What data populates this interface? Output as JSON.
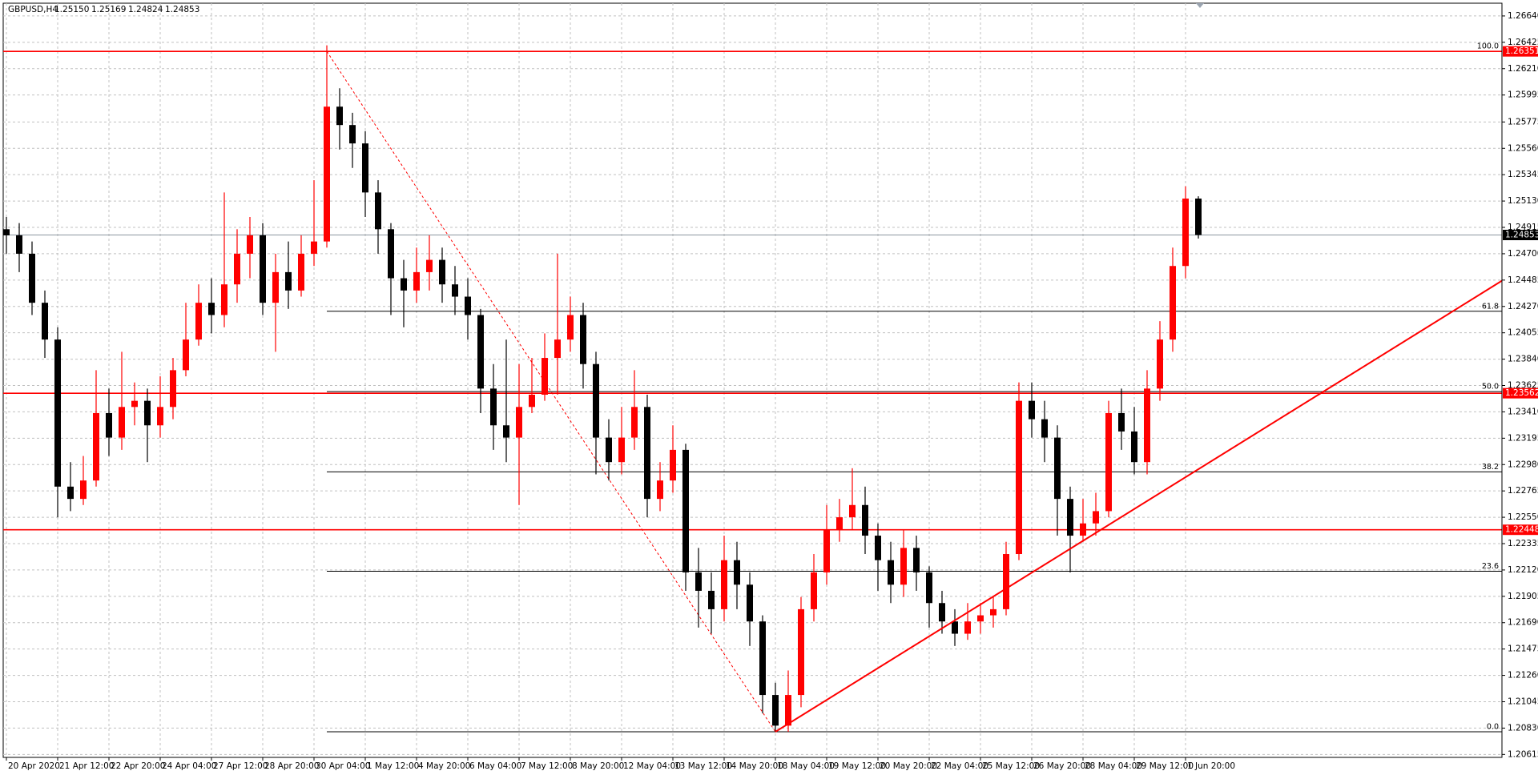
{
  "chart_data": {
    "type": "candlestick",
    "title": "GBPUSD,H4",
    "quote": [
      "1.25150",
      "1.25169",
      "1.24824",
      "1.24853"
    ],
    "categories": [
      "20 Apr 2020",
      null,
      null,
      null,
      "21 Apr 12:00",
      null,
      null,
      null,
      "22 Apr 20:00",
      null,
      null,
      null,
      "24 Apr 04:00",
      null,
      null,
      null,
      "27 Apr 12:00",
      null,
      null,
      null,
      "28 Apr 20:00",
      null,
      null,
      null,
      "30 Apr 04:00",
      null,
      null,
      null,
      "1 May 12:00",
      null,
      null,
      null,
      "4 May 20:00",
      null,
      null,
      null,
      "6 May 04:00",
      null,
      null,
      null,
      "7 May 12:00",
      null,
      null,
      null,
      "8 May 20:00",
      null,
      null,
      null,
      "12 May 04:00",
      null,
      null,
      null,
      "13 May 12:00",
      null,
      null,
      null,
      "14 May 20:00",
      null,
      null,
      null,
      "18 May 04:00",
      null,
      null,
      null,
      "19 May 12:00",
      null,
      null,
      null,
      "20 May 20:00",
      null,
      null,
      null,
      "22 May 04:00",
      null,
      null,
      null,
      "25 May 12:00",
      null,
      null,
      null,
      "26 May 20:00",
      null,
      null,
      null,
      "28 May 04:00",
      null,
      null,
      null,
      "29 May 12:00",
      null,
      null,
      null,
      "1 Jun 20:00",
      null
    ],
    "open": [
      1.249,
      1.2485,
      1.247,
      1.243,
      1.24,
      1.228,
      1.227,
      1.2285,
      1.234,
      1.232,
      1.2345,
      1.235,
      1.233,
      1.2345,
      1.2375,
      1.24,
      1.243,
      1.242,
      1.2445,
      1.247,
      1.2485,
      1.243,
      1.2455,
      1.244,
      1.247,
      1.248,
      1.259,
      1.2575,
      1.256,
      1.252,
      1.249,
      1.245,
      1.244,
      1.2455,
      1.2465,
      1.2445,
      1.2435,
      1.242,
      1.236,
      1.233,
      1.232,
      1.2345,
      1.2355,
      1.2385,
      1.24,
      1.242,
      1.238,
      1.232,
      1.23,
      1.232,
      1.2345,
      1.227,
      1.2285,
      1.231,
      1.221,
      1.2195,
      1.218,
      1.222,
      1.22,
      1.217,
      1.211,
      1.2085,
      1.211,
      1.218,
      1.221,
      1.2245,
      1.2255,
      1.2265,
      1.224,
      1.222,
      1.22,
      1.223,
      1.221,
      1.2185,
      1.217,
      1.216,
      1.217,
      1.2175,
      1.218,
      1.2225,
      1.235,
      1.2335,
      1.232,
      1.227,
      1.224,
      1.225,
      1.226,
      1.234,
      1.2325,
      1.23,
      1.236,
      1.24,
      1.246,
      1.2515
    ],
    "high": [
      1.25,
      1.2495,
      1.248,
      1.244,
      1.241,
      1.23,
      1.2305,
      1.2375,
      1.236,
      1.239,
      1.2365,
      1.236,
      1.237,
      1.2385,
      1.243,
      1.2445,
      1.245,
      1.252,
      1.249,
      1.25,
      1.2495,
      1.247,
      1.248,
      1.2485,
      1.253,
      1.264,
      1.2605,
      1.2585,
      1.257,
      1.253,
      1.2495,
      1.2465,
      1.2475,
      1.2485,
      1.2475,
      1.246,
      1.245,
      1.2425,
      1.238,
      1.24,
      1.238,
      1.2385,
      1.2405,
      1.247,
      1.2435,
      1.243,
      1.239,
      1.2335,
      1.2345,
      1.2375,
      1.2355,
      1.23,
      1.233,
      1.2315,
      1.223,
      1.221,
      1.224,
      1.2235,
      1.221,
      1.2175,
      1.212,
      1.213,
      1.219,
      1.2225,
      1.2265,
      1.227,
      1.2295,
      1.228,
      1.225,
      1.2235,
      1.2245,
      1.224,
      1.2215,
      1.2195,
      1.218,
      1.2185,
      1.2185,
      1.219,
      1.2235,
      1.2365,
      1.2365,
      1.235,
      1.233,
      1.228,
      1.227,
      1.2275,
      1.235,
      1.236,
      1.2345,
      1.2375,
      1.2415,
      1.2475,
      1.2525,
      1.25169
    ],
    "low": [
      1.247,
      1.2455,
      1.242,
      1.2385,
      1.2255,
      1.226,
      1.2265,
      1.228,
      1.2305,
      1.231,
      1.233,
      1.23,
      1.232,
      1.2335,
      1.237,
      1.2395,
      1.2405,
      1.241,
      1.243,
      1.245,
      1.242,
      1.239,
      1.2425,
      1.2435,
      1.246,
      1.2475,
      1.2555,
      1.254,
      1.25,
      1.247,
      1.242,
      1.241,
      1.243,
      1.244,
      1.243,
      1.242,
      1.24,
      1.234,
      1.231,
      1.23,
      1.2265,
      1.234,
      1.235,
      1.2355,
      1.239,
      1.236,
      1.229,
      1.2285,
      1.229,
      1.231,
      1.2255,
      1.226,
      1.2275,
      1.2195,
      1.2165,
      1.216,
      1.217,
      1.218,
      1.215,
      1.2095,
      1.208,
      1.208,
      1.21,
      1.217,
      1.22,
      1.2235,
      1.2245,
      1.2225,
      1.2195,
      1.2185,
      1.219,
      1.2195,
      1.2165,
      1.216,
      1.215,
      1.2155,
      1.216,
      1.2165,
      1.2175,
      1.222,
      1.232,
      1.23,
      1.224,
      1.221,
      1.2235,
      1.224,
      1.2255,
      1.231,
      1.229,
      1.229,
      1.235,
      1.239,
      1.245,
      1.24824
    ],
    "close": [
      1.2485,
      1.247,
      1.243,
      1.24,
      1.228,
      1.227,
      1.2285,
      1.234,
      1.232,
      1.2345,
      1.235,
      1.233,
      1.2345,
      1.2375,
      1.24,
      1.243,
      1.242,
      1.2445,
      1.247,
      1.2485,
      1.243,
      1.2455,
      1.244,
      1.247,
      1.248,
      1.259,
      1.2575,
      1.256,
      1.252,
      1.249,
      1.245,
      1.244,
      1.2455,
      1.2465,
      1.2445,
      1.2435,
      1.242,
      1.236,
      1.233,
      1.232,
      1.2345,
      1.2355,
      1.2385,
      1.24,
      1.242,
      1.238,
      1.232,
      1.23,
      1.232,
      1.2345,
      1.227,
      1.2285,
      1.231,
      1.221,
      1.2195,
      1.218,
      1.222,
      1.22,
      1.217,
      1.211,
      1.2085,
      1.211,
      1.218,
      1.221,
      1.2245,
      1.2255,
      1.2265,
      1.224,
      1.222,
      1.22,
      1.223,
      1.221,
      1.2185,
      1.217,
      1.216,
      1.217,
      1.2175,
      1.218,
      1.2225,
      1.235,
      1.2335,
      1.232,
      1.227,
      1.224,
      1.225,
      1.226,
      1.234,
      1.2325,
      1.23,
      1.236,
      1.24,
      1.246,
      1.2515,
      1.24853
    ],
    "up_color": "#ff0000",
    "down_color": "#000000",
    "ylim": [
      1.20591,
      1.26744
    ],
    "yticks": [
      {
        "value": 1.2664,
        "label": "1.26640"
      },
      1.26425,
      {
        "value": 1.2621,
        "label": "1.26210"
      },
      1.25995,
      1.25775,
      {
        "value": 1.2556,
        "label": "1.25560"
      },
      1.25345,
      {
        "value": 1.2513,
        "label": "1.25130"
      },
      1.24915,
      {
        "value": 1.247,
        "label": "1.24700"
      },
      1.24485,
      {
        "value": 1.2427,
        "label": "1.24270"
      },
      1.24055,
      {
        "value": 1.2384,
        "label": "1.23840"
      },
      1.23625,
      {
        "value": 1.2341,
        "label": "1.23410"
      },
      1.23195,
      {
        "value": 1.2298,
        "label": "1.22980"
      },
      1.22765,
      {
        "value": 1.2255,
        "label": "1.22550"
      },
      1.22335,
      {
        "value": 1.2212,
        "label": "1.22120"
      },
      1.21905,
      {
        "value": 1.2169,
        "label": "1.21690"
      },
      1.21475,
      {
        "value": 1.2126,
        "label": "1.21260"
      },
      1.21045,
      {
        "value": 1.2083,
        "label": "1.20830"
      },
      1.20615
    ],
    "grid": true,
    "price_lines": [
      {
        "value": 1.26351,
        "color": "#ff0000"
      },
      {
        "value": 1.23562,
        "color": "#ff0000"
      },
      {
        "value": 1.22448,
        "color": "#ff0000"
      }
    ],
    "current_price_color": "#8c96a0",
    "fibonacci": {
      "high": 1.26351,
      "low": 1.208,
      "color": "#000000",
      "trend_color": "#ff0000",
      "levels": [
        {
          "value": 100,
          "label": "100.0"
        },
        61.8,
        {
          "value": 50,
          "label": "50.0"
        },
        38.2,
        23.6,
        {
          "value": 0,
          "label": "0.0"
        }
      ]
    },
    "trendline": {
      "start_candle": 60,
      "start_price": 1.208,
      "end_candle": 117,
      "end_price": 1.245,
      "color": "#ff0000"
    }
  }
}
